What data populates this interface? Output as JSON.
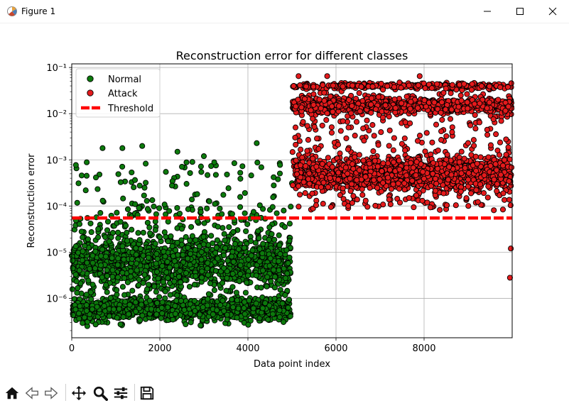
{
  "window": {
    "title": "Figure 1",
    "icons": [
      "matplotlib-logo-icon",
      "minimize-icon",
      "maximize-icon",
      "close-icon"
    ]
  },
  "toolbar": {
    "buttons": [
      "home-icon",
      "back-icon",
      "forward-icon",
      "pan-icon",
      "zoom-icon",
      "configure-subplots-icon",
      "save-icon"
    ]
  },
  "chart_data": {
    "type": "scatter",
    "title": "Reconstruction error for different classes",
    "xlabel": "Data point index",
    "ylabel": "Reconstruction error",
    "xlim": [
      0,
      10000
    ],
    "ylim": [
      1.4e-07,
      0.12
    ],
    "yscale": "log",
    "xticks": [
      0,
      2000,
      4000,
      6000,
      8000
    ],
    "xtick_labels": [
      "0",
      "2000",
      "4000",
      "6000",
      "8000"
    ],
    "yticks": [
      1e-06,
      1e-05,
      0.0001,
      0.001,
      0.01,
      0.1
    ],
    "ytick_labels": [
      "10⁻⁶",
      "10⁻⁵",
      "10⁻⁴",
      "10⁻³",
      "10⁻²",
      "10⁻¹"
    ],
    "grid": true,
    "legend_position": "top-left",
    "series": [
      {
        "name": "Normal",
        "color": "#0c7a0c",
        "x_range": [
          0,
          5000
        ],
        "approx_points": 5000,
        "typical_range": [
          2.5e-07,
          0.0001
        ],
        "dense_bands": [
          6e-07,
          6e-06
        ],
        "sample_outliers": [
          {
            "x": 700,
            "y": 0.0018
          },
          {
            "x": 1150,
            "y": 0.0018
          },
          {
            "x": 1600,
            "y": 0.002
          },
          {
            "x": 2400,
            "y": 0.0015
          },
          {
            "x": 3000,
            "y": 0.0012
          },
          {
            "x": 4200,
            "y": 0.0023
          }
        ]
      },
      {
        "name": "Attack",
        "color": "#e41a1c",
        "x_range": [
          5000,
          10000
        ],
        "approx_points": 5000,
        "typical_range": [
          8e-05,
          0.045
        ],
        "dense_bands": [
          0.0005,
          0.015
        ],
        "sample_outliers": [
          {
            "x": 5150,
            "y": 0.065
          },
          {
            "x": 5800,
            "y": 0.065
          },
          {
            "x": 7900,
            "y": 0.065
          },
          {
            "x": 9970,
            "y": 1.2e-05
          },
          {
            "x": 9950,
            "y": 2.8e-06
          }
        ]
      }
    ],
    "threshold": {
      "name": "Threshold",
      "value": 5.5e-05,
      "color": "#ff0000",
      "style": "dashed"
    }
  }
}
